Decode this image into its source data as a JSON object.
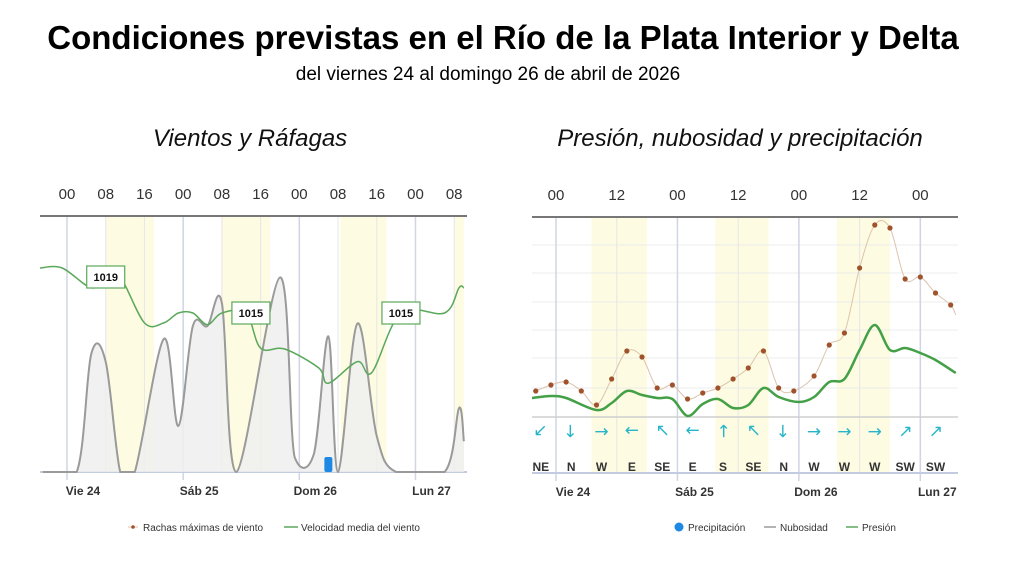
{
  "header": {
    "title": "Condiciones previstas en el Río de la Plata Interior y Delta",
    "subtitle": "del viernes 24 al domingo 26 de abril de 2026"
  },
  "colors": {
    "pressure": "#5aa85a",
    "cloud_stroke": "#9a9a9a",
    "cloud_fill": "#efefef",
    "precipitation": "#1e88e5",
    "gust_dots": "#a0522d",
    "gust_line": "#dcc3ad",
    "mean_wind": "#43a047",
    "daylight": "#fdfbe1",
    "wind_arrow": "#26b5c9"
  },
  "chart_data": [
    {
      "type": "line",
      "title": "Vientos y Ráfagas",
      "top_ticks": [
        "00",
        "08",
        "16",
        "00",
        "08",
        "16",
        "00",
        "08",
        "16",
        "00",
        "08"
      ],
      "tick_times": [
        "2026-04-24T00:00",
        "2026-04-24T08:00",
        "2026-04-24T16:00",
        "2026-04-25T00:00",
        "2026-04-25T08:00",
        "2026-04-25T16:00",
        "2026-04-26T00:00",
        "2026-04-26T08:00",
        "2026-04-26T16:00",
        "2026-04-27T00:00",
        "2026-04-27T08:00"
      ],
      "day_labels": [
        "Vie 24",
        "Sáb 25",
        "Dom 26",
        "Lun 27"
      ],
      "daylight": [
        [
          "2026-04-24T08:00",
          "2026-04-24T18:00"
        ],
        [
          "2026-04-25T08:00",
          "2026-04-25T18:00"
        ],
        [
          "2026-04-26T08:30",
          "2026-04-26T18:00"
        ],
        [
          "2026-04-27T08:00",
          "2026-04-27T10:00"
        ]
      ],
      "legend": [
        "Rachas máximas de viento",
        "Velocidad media del viento"
      ],
      "series": [
        {
          "kind": "area",
          "values": [
            [
              "2026-04-23T19:00",
              0
            ],
            [
              "2026-04-24T02:00",
              0
            ],
            [
              "2026-04-24T05:00",
              46
            ],
            [
              "2026-04-24T08:00",
              43
            ],
            [
              "2026-04-24T11:00",
              0
            ],
            [
              "2026-04-24T14:00",
              0
            ],
            [
              "2026-04-24T20:00",
              52
            ],
            [
              "2026-04-24T23:00",
              18
            ],
            [
              "2026-04-25T02:00",
              57
            ],
            [
              "2026-04-25T05:00",
              57
            ],
            [
              "2026-04-25T08:00",
              66
            ],
            [
              "2026-04-25T11:00",
              0
            ],
            [
              "2026-04-25T20:00",
              76
            ],
            [
              "2026-04-25T23:00",
              6
            ],
            [
              "2026-04-26T03:00",
              7
            ],
            [
              "2026-04-26T06:00",
              53
            ],
            [
              "2026-04-26T08:00",
              0
            ],
            [
              "2026-04-26T12:00",
              58
            ],
            [
              "2026-04-26T16:00",
              14
            ],
            [
              "2026-04-26T20:00",
              0
            ],
            [
              "2026-04-27T06:00",
              0
            ],
            [
              "2026-04-27T09:00",
              25
            ],
            [
              "2026-04-27T10:00",
              12
            ]
          ]
        },
        {
          "kind": "pressure",
          "values": [
            [
              "2026-04-23T18:00",
              1020
            ],
            [
              "2026-04-23T23:00",
              1020
            ],
            [
              "2026-04-24T05:00",
              1017.8
            ],
            [
              "2026-04-24T08:00",
              1019
            ],
            [
              "2026-04-24T11:00",
              1019
            ],
            [
              "2026-04-24T16:00",
              1013.9
            ],
            [
              "2026-04-24T20:00",
              1013.9
            ],
            [
              "2026-04-24T23:00",
              1015
            ],
            [
              "2026-04-25T02:00",
              1015
            ],
            [
              "2026-04-25T05:00",
              1013.7
            ],
            [
              "2026-04-25T08:00",
              1015
            ],
            [
              "2026-04-25T13:00",
              1015
            ],
            [
              "2026-04-25T16:00",
              1011.1
            ],
            [
              "2026-04-25T21:00",
              1011
            ],
            [
              "2026-04-26T04:00",
              1008.9
            ],
            [
              "2026-04-26T06:00",
              1007.2
            ],
            [
              "2026-04-26T12:00",
              1009.6
            ],
            [
              "2026-04-26T15:00",
              1008.4
            ],
            [
              "2026-04-26T21:00",
              1015
            ],
            [
              "2026-04-27T06:00",
              1015
            ],
            [
              "2026-04-27T09:00",
              1017.8
            ],
            [
              "2026-04-27T10:00",
              1017.8
            ]
          ]
        },
        {
          "kind": "precipitation",
          "values": [
            [
              "2026-04-26T06:00",
              1
            ]
          ]
        }
      ],
      "pressure_labels": [
        [
          "2026-04-24T08:00",
          1019,
          "1019"
        ],
        [
          "2026-04-25T14:00",
          1015,
          "1015"
        ],
        [
          "2026-04-26T21:00",
          1015,
          "1015"
        ]
      ]
    },
    {
      "type": "line",
      "title": "Presión, nubosidad y precipitación",
      "top_ticks": [
        "00",
        "12",
        "00",
        "12",
        "00",
        "12",
        "00"
      ],
      "tick_times": [
        "2026-04-24T00:00",
        "2026-04-24T12:00",
        "2026-04-25T00:00",
        "2026-04-25T12:00",
        "2026-04-26T00:00",
        "2026-04-26T12:00",
        "2026-04-27T00:00"
      ],
      "day_labels": [
        "Vie 24",
        "Sáb 25",
        "Dom 26",
        "Lun 27"
      ],
      "daylight": [
        [
          "2026-04-24T07:00",
          "2026-04-24T18:00"
        ],
        [
          "2026-04-25T07:30",
          "2026-04-25T18:00"
        ],
        [
          "2026-04-26T07:30",
          "2026-04-26T18:00"
        ]
      ],
      "legend": [
        "Precipitación",
        "Nubosidad",
        "Presión"
      ],
      "series": [
        {
          "kind": "gust",
          "values": [
            [
              "2026-04-23T20:00",
              13
            ],
            [
              "2026-04-23T23:00",
              16
            ],
            [
              "2026-04-24T02:00",
              17.5
            ],
            [
              "2026-04-24T05:00",
              13
            ],
            [
              "2026-04-24T08:00",
              6
            ],
            [
              "2026-04-24T11:00",
              19
            ],
            [
              "2026-04-24T14:00",
              33
            ],
            [
              "2026-04-24T17:00",
              30
            ],
            [
              "2026-04-24T20:00",
              14.5
            ],
            [
              "2026-04-24T23:00",
              16
            ],
            [
              "2026-04-25T02:00",
              9
            ],
            [
              "2026-04-25T05:00",
              12
            ],
            [
              "2026-04-25T08:00",
              14.5
            ],
            [
              "2026-04-25T11:00",
              19
            ],
            [
              "2026-04-25T14:00",
              24.5
            ],
            [
              "2026-04-25T17:00",
              33
            ],
            [
              "2026-04-25T20:00",
              14.5
            ],
            [
              "2026-04-25T23:00",
              13
            ],
            [
              "2026-04-26T03:00",
              20.5
            ],
            [
              "2026-04-26T06:00",
              36
            ],
            [
              "2026-04-26T09:00",
              42
            ],
            [
              "2026-04-26T12:00",
              74.5
            ],
            [
              "2026-04-26T15:00",
              96
            ],
            [
              "2026-04-26T18:00",
              94.5
            ],
            [
              "2026-04-26T21:00",
              69
            ],
            [
              "2026-04-27T00:00",
              70
            ],
            [
              "2026-04-27T03:00",
              62
            ],
            [
              "2026-04-27T06:00",
              56
            ],
            [
              "2026-04-27T07:00",
              51
            ]
          ]
        },
        {
          "kind": "mean",
          "values": [
            [
              "2026-04-23T18:30",
              9.5
            ],
            [
              "2026-04-23T23:00",
              10.5
            ],
            [
              "2026-04-24T02:00",
              9.5
            ],
            [
              "2026-04-24T08:00",
              3.5
            ],
            [
              "2026-04-24T11:00",
              7
            ],
            [
              "2026-04-24T14:00",
              13
            ],
            [
              "2026-04-24T17:00",
              11
            ],
            [
              "2026-04-24T20:00",
              9.5
            ],
            [
              "2026-04-24T23:00",
              9
            ],
            [
              "2026-04-25T02:00",
              0.5
            ],
            [
              "2026-04-25T05:00",
              6.5
            ],
            [
              "2026-04-25T08:00",
              9
            ],
            [
              "2026-04-25T11:00",
              4.5
            ],
            [
              "2026-04-25T14:00",
              6
            ],
            [
              "2026-04-25T17:00",
              14.5
            ],
            [
              "2026-04-25T20:00",
              10
            ],
            [
              "2026-04-26T00:00",
              7.5
            ],
            [
              "2026-04-26T03:00",
              10
            ],
            [
              "2026-04-26T06:00",
              17.5
            ],
            [
              "2026-04-26T09:00",
              19
            ],
            [
              "2026-04-26T12:00",
              33.5
            ],
            [
              "2026-04-26T15:00",
              46
            ],
            [
              "2026-04-26T18:00",
              33.5
            ],
            [
              "2026-04-26T21:00",
              34.5
            ],
            [
              "2026-04-27T00:00",
              32
            ],
            [
              "2026-04-27T03:00",
              28.5
            ],
            [
              "2026-04-27T07:00",
              22
            ]
          ]
        }
      ],
      "wind_directions": {
        "start": "2026-04-23T21:00",
        "step_hours": 6,
        "labels": [
          "NE",
          "N",
          "W",
          "E",
          "SE",
          "E",
          "S",
          "SE",
          "N",
          "W",
          "W",
          "W",
          "SW",
          "SW"
        ]
      }
    }
  ]
}
